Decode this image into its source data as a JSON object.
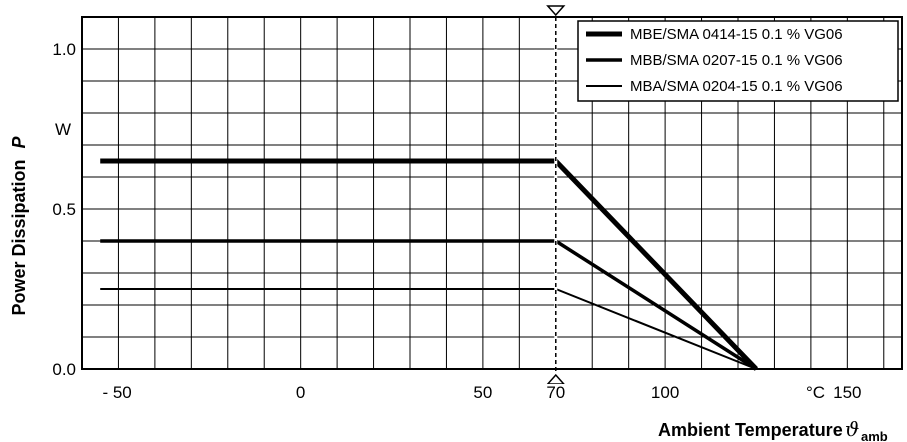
{
  "chart_data": {
    "type": "line",
    "xlabel": "Ambient Temperature",
    "xlabel_symbol": "ϑ",
    "xlabel_subscript": "amb",
    "ylabel": "Power Dissipation",
    "ylabel_symbol": "P",
    "x_unit": "°C",
    "y_unit": "W",
    "x_ticks": [
      {
        "value": -50,
        "label": "- 50"
      },
      {
        "value": 0,
        "label": "0"
      },
      {
        "value": 50,
        "label": "50"
      },
      {
        "value": 70,
        "label": "70"
      },
      {
        "value": 100,
        "label": "100"
      },
      {
        "value": 150,
        "label": "150"
      }
    ],
    "y_ticks": [
      {
        "value": 0.0,
        "label": "0.0"
      },
      {
        "value": 0.5,
        "label": "0.5"
      },
      {
        "value": 1.0,
        "label": "1.0"
      }
    ],
    "xlim": [
      -60,
      165
    ],
    "ylim": [
      0,
      1.1
    ],
    "grid": true,
    "legend_position": "top-right",
    "marker_x": 70,
    "series": [
      {
        "name": "MBE/SMA 0414-15 0.1 % VG06",
        "x": [
          -55,
          70,
          125
        ],
        "y": [
          0.65,
          0.65,
          0.0
        ],
        "color": "#000000"
      },
      {
        "name": "MBB/SMA 0207-15 0.1 % VG06",
        "x": [
          -55,
          70,
          125
        ],
        "y": [
          0.4,
          0.4,
          0.0
        ],
        "color": "#000000"
      },
      {
        "name": "MBA/SMA 0204-15 0.1 % VG06",
        "x": [
          -55,
          70,
          125
        ],
        "y": [
          0.25,
          0.25,
          0.0
        ],
        "color": "#000000"
      }
    ]
  }
}
